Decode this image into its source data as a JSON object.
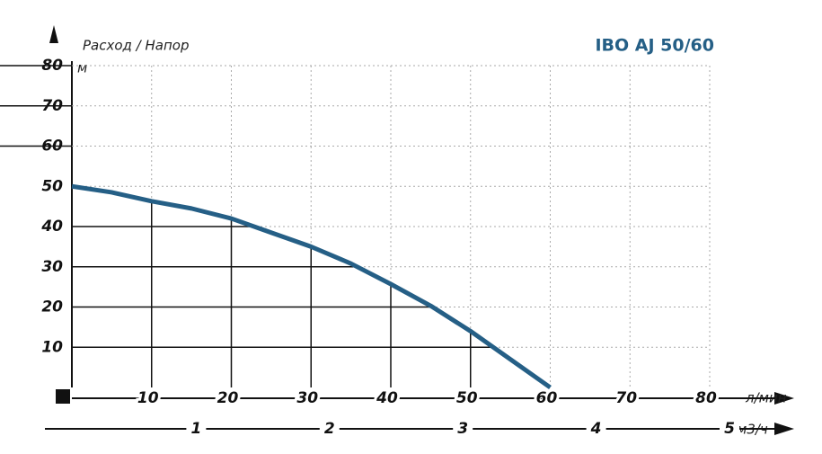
{
  "chart_data": {
    "type": "line",
    "title": "IBO AJ 50/60",
    "y_label": "Расход / Напор",
    "y_unit": "м",
    "x_unit": "л/мин",
    "x2_unit": "м3/ч",
    "x": [
      0,
      5,
      10,
      15,
      20,
      25,
      30,
      35,
      40,
      45,
      50,
      55,
      60
    ],
    "series": [
      {
        "name": "IBO AJ 50/60",
        "color": "#255f86",
        "values": [
          50,
          48.5,
          46.3,
          44.5,
          42,
          38.5,
          35,
          30.8,
          25.7,
          20.3,
          14,
          7,
          0
        ]
      }
    ],
    "xlim": [
      0,
      80
    ],
    "xticks": [
      10,
      20,
      30,
      40,
      50,
      60,
      70,
      80
    ],
    "ylim": [
      0,
      80
    ],
    "yticks": [
      10,
      20,
      30,
      40,
      50,
      60,
      70,
      80
    ],
    "x2lim": [
      0,
      5
    ],
    "x2ticks": [
      1,
      2,
      3,
      4,
      5
    ],
    "grid": true
  }
}
